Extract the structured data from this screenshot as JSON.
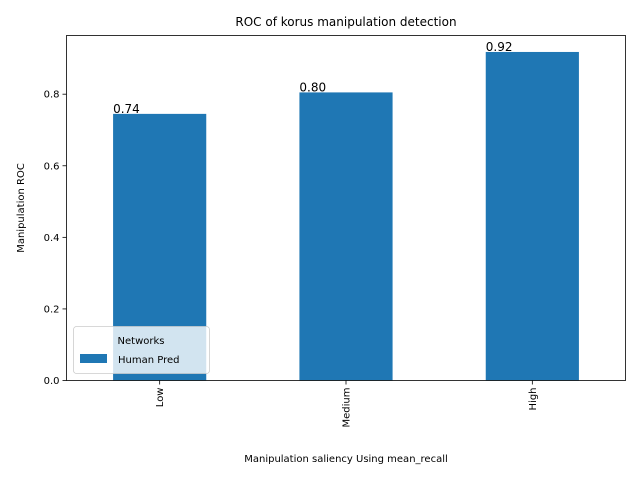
{
  "chart_data": {
    "type": "bar",
    "title": "ROC of korus manipulation detection",
    "xlabel": "Manipulation saliency Using mean_recall",
    "ylabel": "Manipulation ROC",
    "categories": [
      "Low",
      "Medium",
      "High"
    ],
    "series": [
      {
        "name": "Human Pred",
        "values": [
          0.745,
          0.805,
          0.918
        ],
        "color": "#1f77b4"
      }
    ],
    "data_labels": [
      "0.74",
      "0.80",
      "0.92"
    ],
    "ylim": [
      0,
      0.964
    ],
    "yticks": [
      0.0,
      0.2,
      0.4,
      0.6,
      0.8
    ],
    "ytick_labels": [
      "0.0",
      "0.2",
      "0.4",
      "0.6",
      "0.8"
    ],
    "grid": false,
    "legend": {
      "title": "Networks",
      "placement": "lower-left"
    }
  }
}
